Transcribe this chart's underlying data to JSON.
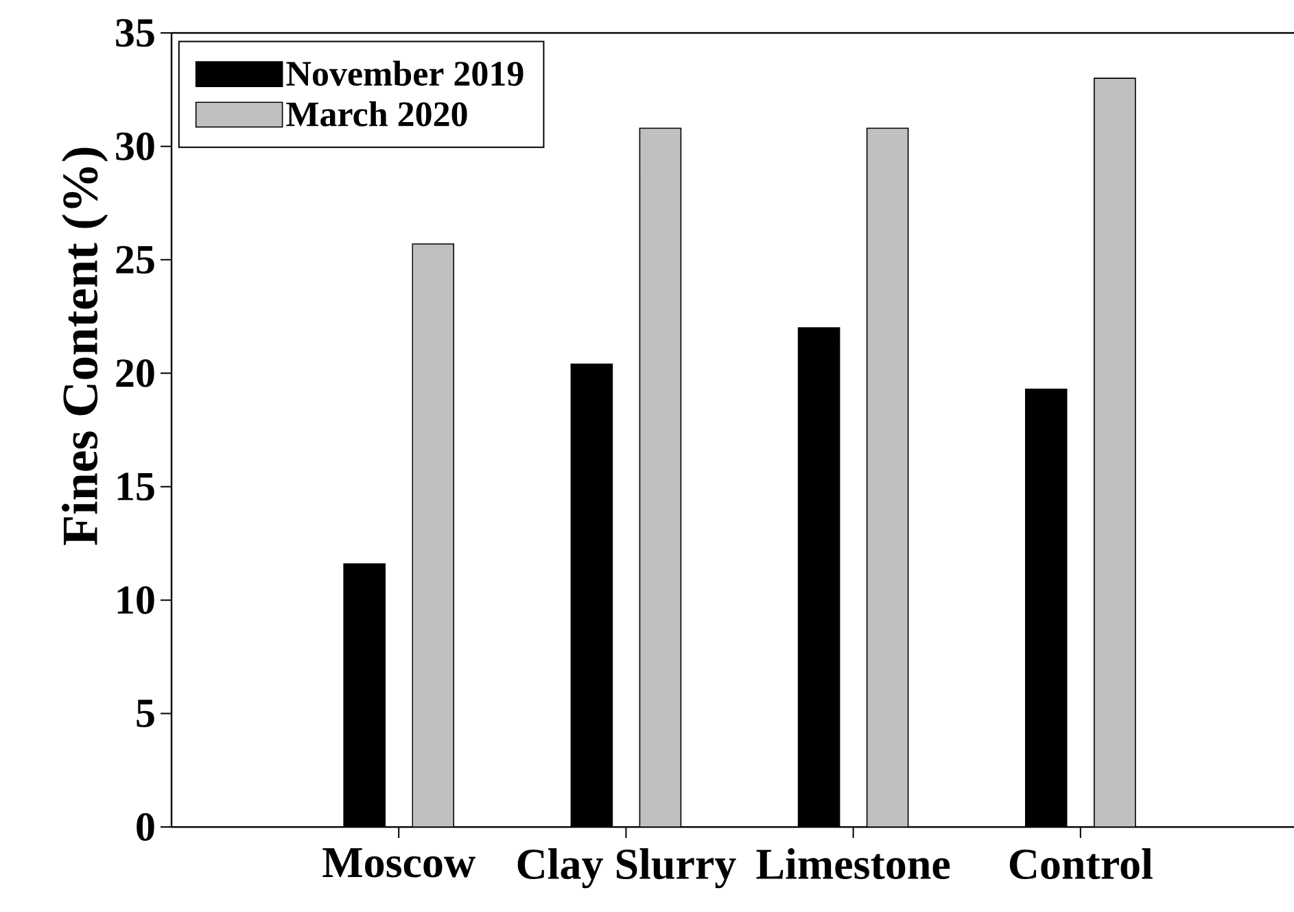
{
  "chart_data": {
    "type": "bar",
    "ylabel": "Fines Content (%)",
    "categories": [
      "Moscow",
      "Clay Slurry",
      "Limestone",
      "Control"
    ],
    "series": [
      {
        "name": "November 2019",
        "color": "#000000",
        "values": [
          11.6,
          20.4,
          22.0,
          19.3
        ]
      },
      {
        "name": "March 2020",
        "color": "#c0c0c0",
        "values": [
          25.7,
          30.8,
          30.8,
          33.0
        ]
      }
    ],
    "ylim": [
      0,
      35
    ],
    "yticks": [
      0,
      5,
      10,
      15,
      20,
      25,
      30,
      35
    ],
    "legend": "top left"
  }
}
